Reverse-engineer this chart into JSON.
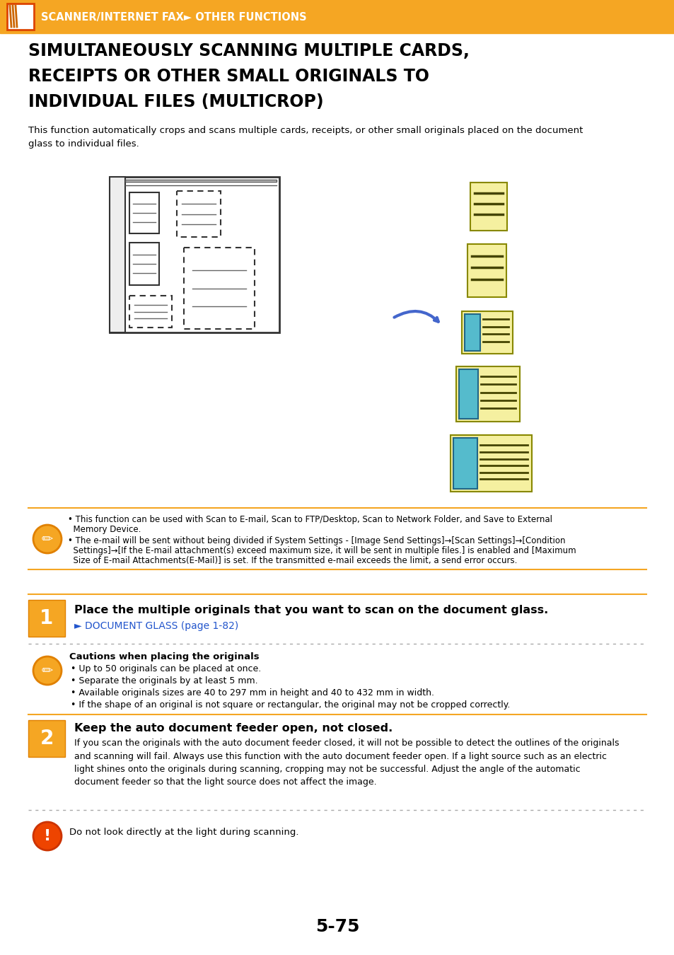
{
  "header_color": "#F5A623",
  "header_text": "SCANNER/INTERNET FAX► OTHER FUNCTIONS",
  "title_line1": "SIMULTANEOUSLY SCANNING MULTIPLE CARDS,",
  "title_line2": "RECEIPTS OR OTHER SMALL ORIGINALS TO",
  "title_line3": "INDIVIDUAL FILES (MULTICROP)",
  "desc_text": "This function automatically crops and scans multiple cards, receipts, or other small originals placed on the document\nglass to individual files.",
  "step1_bold": "Place the multiple originals that you want to scan on the document glass.",
  "step1_link": "► DOCUMENT GLASS (page 1-82)",
  "caution_title": "Cautions when placing the originals",
  "caution_items": [
    "Up to 50 originals can be placed at once.",
    "Separate the originals by at least 5 mm.",
    "Available originals sizes are 40 to 297 mm in height and 40 to 432 mm in width.",
    "If the shape of an original is not square or rectangular, the original may not be cropped correctly."
  ],
  "step2_bold": "Keep the auto document feeder open, not closed.",
  "step2_text": "If you scan the originals with the auto document feeder closed, it will not be possible to detect the outlines of the originals\nand scanning will fail. Always use this function with the auto document feeder open. If a light source such as an electric\nlight shines onto the originals during scanning, cropping may not be successful. Adjust the angle of the automatic\ndocument feeder so that the light source does not affect the image.",
  "warn_text": "Do not look directly at the light during scanning.",
  "note1_line1": "• This function can be used with Scan to E-mail, Scan to FTP/Desktop, Scan to Network Folder, and Save to External",
  "note1_line2": "  Memory Device.",
  "note1_line3": "• The e-mail will be sent without being divided if System Settings - [Image Send Settings]→[Scan Settings]→[Condition",
  "note1_line4": "  Settings]→[If the E-mail attachment(s) exceed maximum size, it will be sent in multiple files.] is enabled and [Maximum",
  "note1_line5": "  Size of E-mail Attachments(E-Mail)] is set. If the transmitted e-mail exceeds the limit, a send error occurs.",
  "page_num": "5-75",
  "orange": "#F5A623",
  "dark_orange": "#E08000",
  "yellow_card": "#F5F0A0",
  "teal_card": "#55BBCC",
  "link_blue": "#2255CC",
  "white": "#FFFFFF",
  "black": "#000000",
  "gray_dot": "#AAAAAA"
}
